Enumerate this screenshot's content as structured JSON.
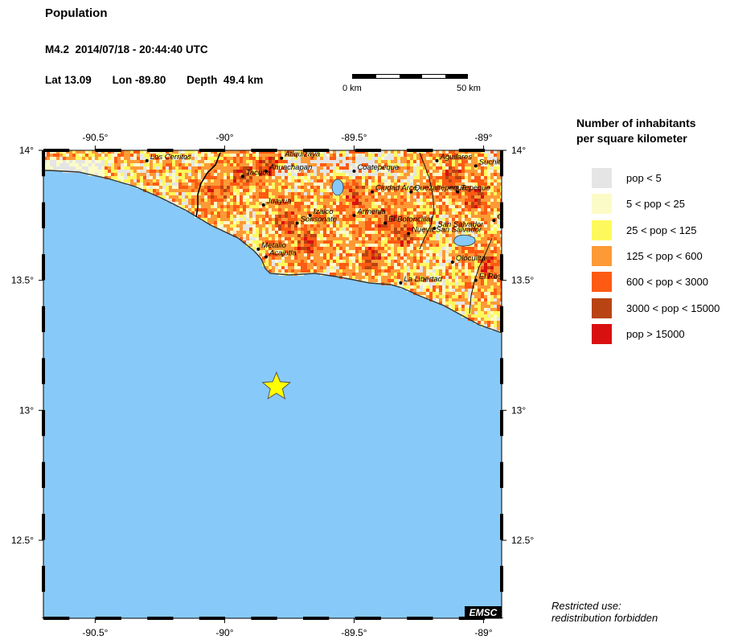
{
  "header": {
    "title": "Population",
    "event": "M4.2  2014/07/18 - 20:44:40 UTC",
    "lat": "Lat 13.09",
    "lon": "Lon -89.80",
    "depth": "Depth  49.4 km"
  },
  "scale": {
    "left_label": "0 km",
    "right_label": "50 km"
  },
  "map": {
    "lon_range": [
      -90.7,
      -88.93
    ],
    "lat_range": [
      12.2,
      14.0
    ],
    "lon_ticks": [
      {
        "value": -90.5,
        "label": "-90.5°"
      },
      {
        "value": -90,
        "label": "-90°"
      },
      {
        "value": -89.5,
        "label": "-89.5°"
      },
      {
        "value": -89,
        "label": "-89°"
      }
    ],
    "lat_ticks": [
      {
        "value": 14,
        "label": "14°"
      },
      {
        "value": 13.5,
        "label": "13.5°"
      },
      {
        "value": 13,
        "label": "13°"
      },
      {
        "value": 12.5,
        "label": "12.5°"
      }
    ],
    "epicenter": {
      "lat": 13.09,
      "lon": -89.8
    },
    "cities": [
      {
        "name": "Los Cerritos",
        "lon": -90.3,
        "lat": 13.96
      },
      {
        "name": "Atiquizaya",
        "lon": -89.78,
        "lat": 13.97
      },
      {
        "name": "Ahuachapan",
        "lon": -89.84,
        "lat": 13.92
      },
      {
        "name": "Tacuba",
        "lon": -89.93,
        "lat": 13.9
      },
      {
        "name": "Coatepeque",
        "lon": -89.5,
        "lat": 13.92
      },
      {
        "name": "Aguilares",
        "lon": -89.18,
        "lat": 13.96
      },
      {
        "name": "Suchito",
        "lon": -89.03,
        "lat": 13.94
      },
      {
        "name": "Ciudad Arce",
        "lon": -89.43,
        "lat": 13.84
      },
      {
        "name": "Quezaltepeque",
        "lon": -89.28,
        "lat": 13.84
      },
      {
        "name": "Tepeque",
        "lon": -89.1,
        "lat": 13.84
      },
      {
        "name": "Juayua",
        "lon": -89.85,
        "lat": 13.79
      },
      {
        "name": "Izalco",
        "lon": -89.67,
        "lat": 13.75
      },
      {
        "name": "Sonsonate",
        "lon": -89.72,
        "lat": 13.72
      },
      {
        "name": "Armenia",
        "lon": -89.5,
        "lat": 13.75
      },
      {
        "name": "El Botoncillal",
        "lon": -89.38,
        "lat": 13.72
      },
      {
        "name": "San Salvador",
        "lon": -89.19,
        "lat": 13.7
      },
      {
        "name": "Nueva San Salvador",
        "lon": -89.29,
        "lat": 13.68
      },
      {
        "name": "C",
        "lon": -88.96,
        "lat": 13.73
      },
      {
        "name": "Metalio",
        "lon": -89.87,
        "lat": 13.62
      },
      {
        "name": "Acajutla",
        "lon": -89.84,
        "lat": 13.59
      },
      {
        "name": "Olocuilta",
        "lon": -89.12,
        "lat": 13.57
      },
      {
        "name": "El Rosari",
        "lon": -89.03,
        "lat": 13.5
      },
      {
        "name": "La Libertad",
        "lon": -89.32,
        "lat": 13.49
      }
    ],
    "badge": "EMSC"
  },
  "legend": {
    "title_line1": "Number of inhabitants",
    "title_line2": "per square kilometer",
    "items": [
      {
        "label": "pop < 5",
        "color": "#e5e5e5"
      },
      {
        "label": "5 < pop < 25",
        "color": "#fbfbc8"
      },
      {
        "label": "25 < pop < 125",
        "color": "#fdf95d"
      },
      {
        "label": "125 < pop < 600",
        "color": "#fd9a36"
      },
      {
        "label": "600 < pop < 3000",
        "color": "#fd5a13"
      },
      {
        "label": "3000 < pop < 15000",
        "color": "#b84413"
      },
      {
        "label": "pop > 15000",
        "color": "#d91010"
      }
    ]
  },
  "footer": {
    "line1": "Restricted use:",
    "line2": "redistribution forbidden"
  },
  "colors": {
    "ocean": "#87c9f8",
    "coast": "#333333",
    "star": "#ffff00"
  }
}
